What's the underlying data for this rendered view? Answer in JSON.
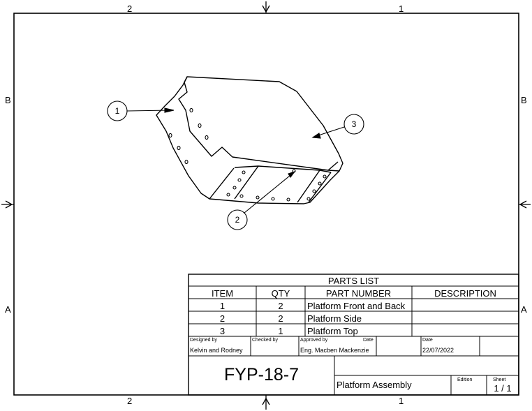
{
  "zones": {
    "top_left": "2",
    "top_right": "1",
    "bottom_left": "2",
    "bottom_right": "1",
    "left_top": "B",
    "left_bottom": "A",
    "right_top": "B",
    "right_bottom": "A"
  },
  "balloons": [
    "1",
    "2",
    "3"
  ],
  "parts_list": {
    "title": "PARTS LIST",
    "headers": [
      "ITEM",
      "QTY",
      "PART NUMBER",
      "DESCRIPTION"
    ],
    "rows": [
      {
        "item": "1",
        "qty": "2",
        "part_number": "Platform Front and Back",
        "description": ""
      },
      {
        "item": "2",
        "qty": "2",
        "part_number": "Platform Side",
        "description": ""
      },
      {
        "item": "3",
        "qty": "1",
        "part_number": "Platform Top",
        "description": ""
      }
    ]
  },
  "title_block": {
    "designed_by_label": "Designed by",
    "designed_by": "Kelvin and Rodney",
    "checked_by_label": "Checked by",
    "checked_by": "",
    "approved_by_label": "Approved by",
    "approved_by": "Eng. Macben Mackenzie",
    "date_label_1": "Date",
    "date_label_2": "Date",
    "date": "22/07/2022",
    "drawing_number": "FYP-18-7",
    "title": "Platform Assembly",
    "edition_label": "Edition",
    "sheet_label": "Sheet",
    "sheet": "1 / 1"
  }
}
